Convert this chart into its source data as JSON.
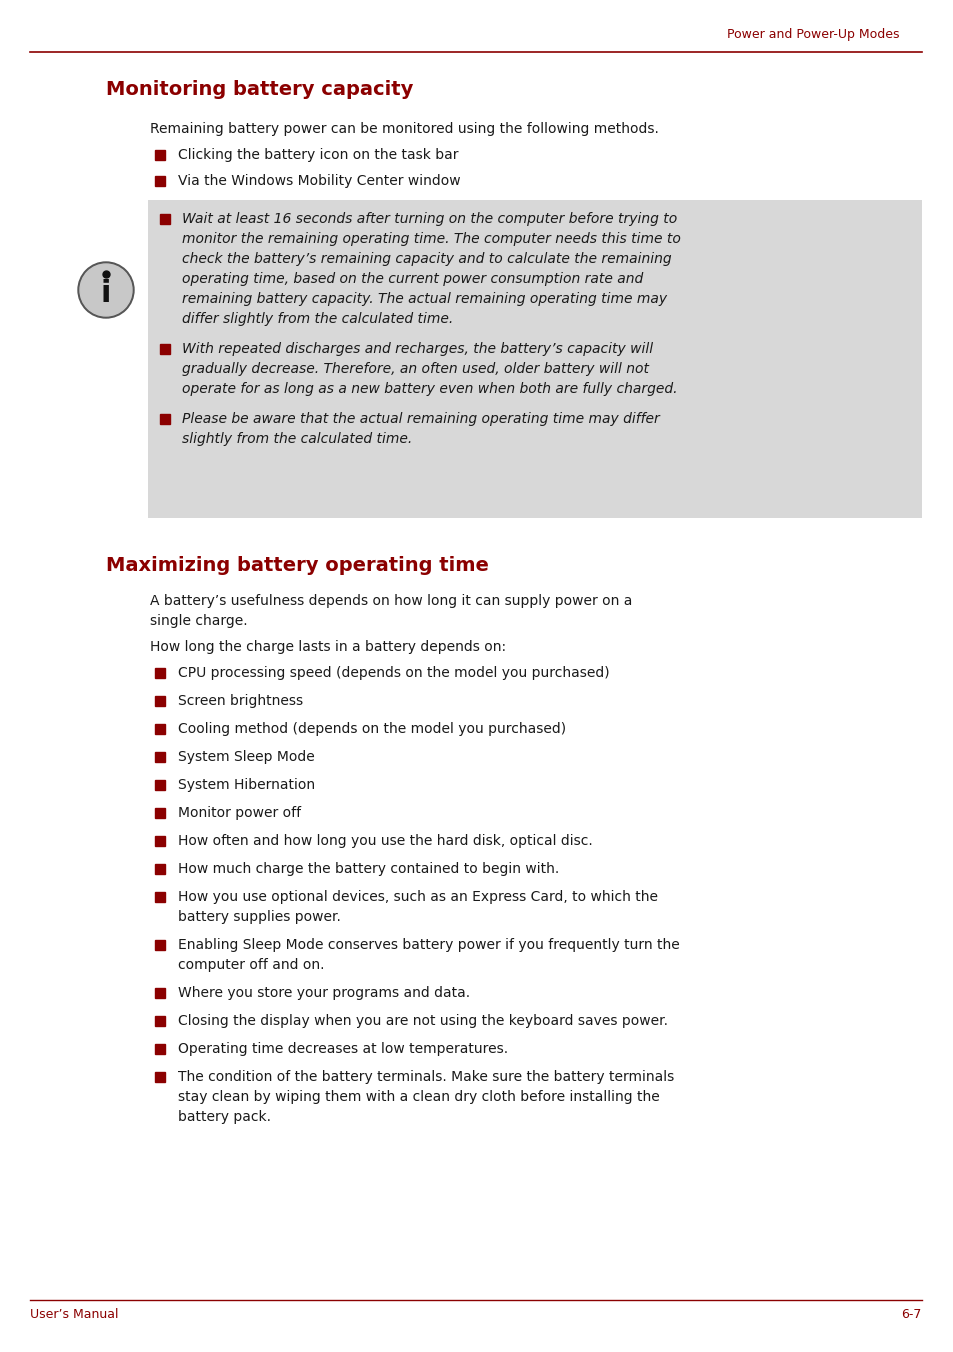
{
  "bg_color": "#ffffff",
  "header_text": "Power and Power-Up Modes",
  "header_color": "#8B0000",
  "footer_left": "User’s Manual",
  "footer_right": "6-7",
  "footer_color": "#8B0000",
  "section1_title": "Monitoring battery capacity",
  "section1_title_color": "#8B0000",
  "section1_intro": "Remaining battery power can be monitored using the following methods.",
  "section1_bullets": [
    "Clicking the battery icon on the task bar",
    "Via the Windows Mobility Center window"
  ],
  "info_box_bg": "#d8d8d8",
  "info_box_bullets_italic": [
    "Wait at least 16 seconds after turning on the computer before trying to\nmonitor the remaining operating time. The computer needs this time to\ncheck the battery’s remaining capacity and to calculate the remaining\noperating time, based on the current power consumption rate and\nremaining battery capacity. The actual remaining operating time may\ndiffer slightly from the calculated time.",
    "With repeated discharges and recharges, the battery’s capacity will\ngradually decrease. Therefore, an often used, older battery will not\noperate for as long as a new battery even when both are fully charged.",
    "Please be aware that the actual remaining operating time may differ\nslightly from the calculated time."
  ],
  "section2_title": "Maximizing battery operating time",
  "section2_title_color": "#8B0000",
  "section2_intro1": "A battery’s usefulness depends on how long it can supply power on a single charge.",
  "section2_intro2": "How long the charge lasts in a battery depends on:",
  "section2_bullets": [
    "CPU processing speed (depends on the model you purchased)",
    "Screen brightness",
    "Cooling method (depends on the model you purchased)",
    "System Sleep Mode",
    "System Hibernation",
    "Monitor power off",
    "How often and how long you use the hard disk, optical disc.",
    "How much charge the battery contained to begin with.",
    "How you use optional devices, such as an Express Card, to which the\nbattery supplies power.",
    "Enabling Sleep Mode conserves battery power if you frequently turn the\ncomputer off and on.",
    "Where you store your programs and data.",
    "Closing the display when you are not using the keyboard saves power.",
    "Operating time decreases at low temperatures.",
    "The condition of the battery terminals. Make sure the battery terminals\nstay clean by wiping them with a clean dry cloth before installing the\nbattery pack."
  ],
  "bullet_color": "#8B0000",
  "text_color": "#1a1a1a"
}
